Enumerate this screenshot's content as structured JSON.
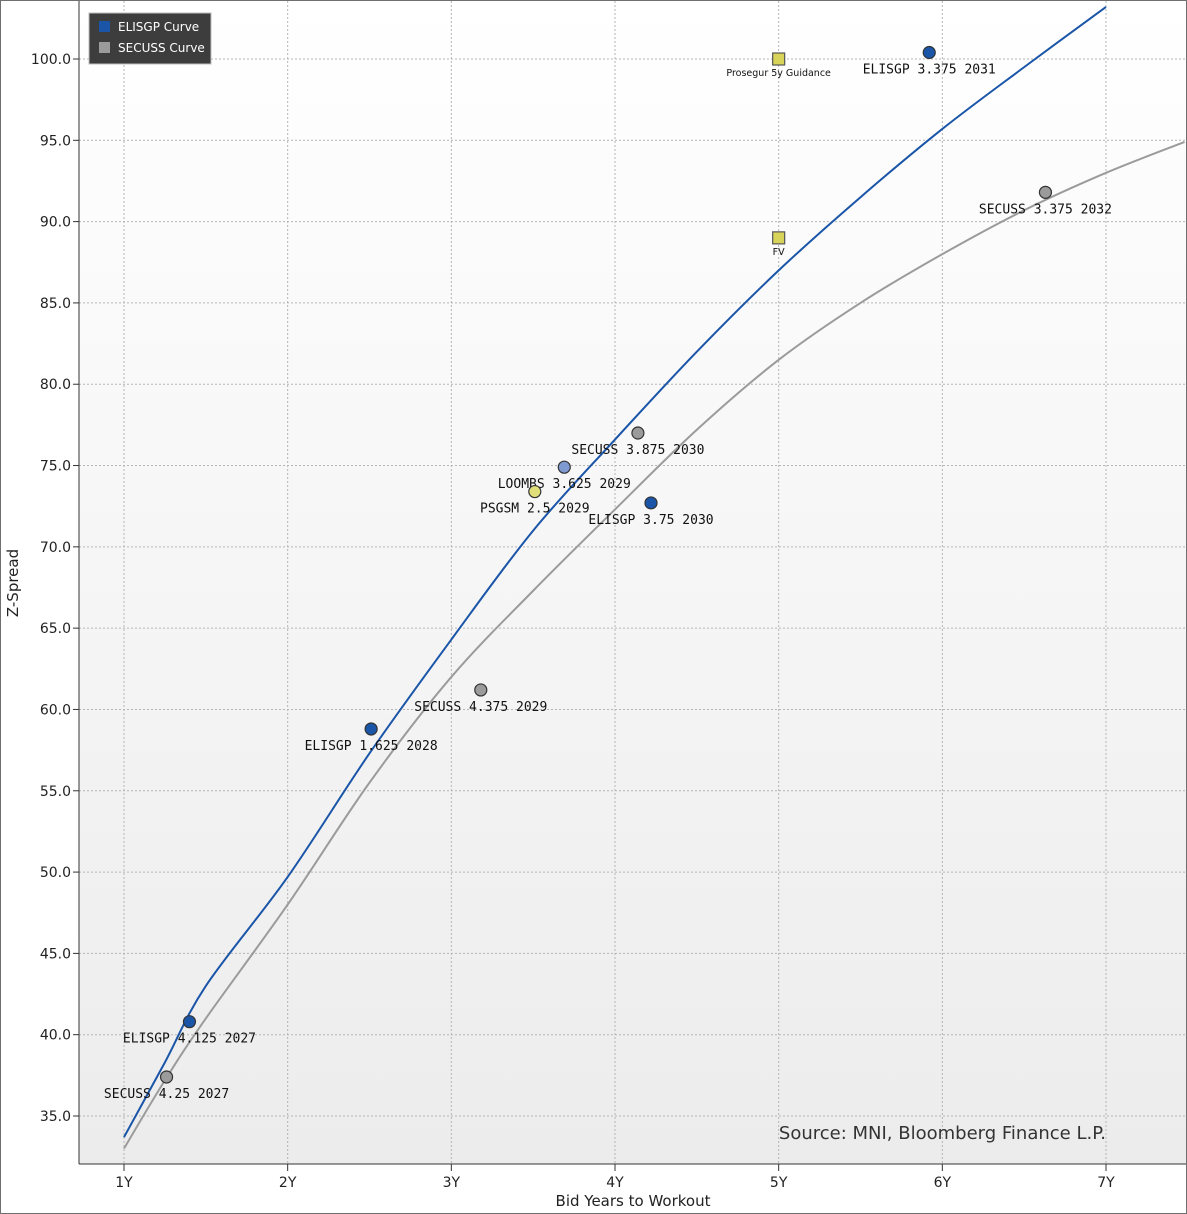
{
  "chart_data": {
    "type": "scatter",
    "xlabel": "Bid Years to Workout",
    "ylabel": "Z-Spread",
    "xlim": [
      0.72,
      7.48
    ],
    "ylim": [
      32.9,
      103.6
    ],
    "x_ticks": [
      {
        "value": 1,
        "label": "1Y"
      },
      {
        "value": 2,
        "label": "2Y"
      },
      {
        "value": 3,
        "label": "3Y"
      },
      {
        "value": 4,
        "label": "4Y"
      },
      {
        "value": 5,
        "label": "5Y"
      },
      {
        "value": 6,
        "label": "6Y"
      },
      {
        "value": 7,
        "label": "7Y"
      }
    ],
    "y_ticks": [
      {
        "value": 35,
        "label": "35.0"
      },
      {
        "value": 40,
        "label": "40.0"
      },
      {
        "value": 45,
        "label": "45.0"
      },
      {
        "value": 50,
        "label": "50.0"
      },
      {
        "value": 55,
        "label": "55.0"
      },
      {
        "value": 60,
        "label": "60.0"
      },
      {
        "value": 65,
        "label": "65.0"
      },
      {
        "value": 70,
        "label": "70.0"
      },
      {
        "value": 75,
        "label": "75.0"
      },
      {
        "value": 80,
        "label": "80.0"
      },
      {
        "value": 85,
        "label": "85.0"
      },
      {
        "value": 90,
        "label": "90.0"
      },
      {
        "value": 95,
        "label": "95.0"
      },
      {
        "value": 100,
        "label": "100.0"
      }
    ],
    "grid": true,
    "legend": {
      "placement": "top-left",
      "entries": [
        {
          "name": "ELISGP Curve",
          "color": "#1a55a8"
        },
        {
          "name": "SECUSS Curve",
          "color": "#9b9b9b"
        }
      ]
    },
    "curves": [
      {
        "name": "ELISGP Curve",
        "color": "#1a55a8",
        "x": [
          1.0,
          1.25,
          1.5,
          2.0,
          2.5,
          3.0,
          3.5,
          4.0,
          4.5,
          5.0,
          5.5,
          6.0,
          6.5,
          7.0
        ],
        "y": [
          33.7,
          38.3,
          43.0,
          49.7,
          57.3,
          64.3,
          71.0,
          76.6,
          82.0,
          87.0,
          91.5,
          95.7,
          99.5,
          103.2
        ]
      },
      {
        "name": "SECUSS Curve",
        "color": "#9b9b9b",
        "x": [
          1.0,
          1.25,
          1.5,
          2.0,
          2.5,
          3.0,
          3.5,
          4.0,
          4.5,
          5.0,
          5.5,
          6.0,
          6.5,
          7.0,
          7.48
        ],
        "y": [
          33.0,
          37.2,
          41.0,
          48.0,
          55.5,
          62.0,
          67.3,
          72.3,
          77.2,
          81.5,
          85.0,
          88.0,
          90.7,
          93.0,
          94.9
        ]
      }
    ],
    "points": [
      {
        "label": "ELISGP 3.375 2031",
        "x": 5.92,
        "y": 100.4,
        "shape": "circle",
        "color": "#1a55a8",
        "label_pos": "below",
        "small": false
      },
      {
        "label": "SECUSS 3.375 2032",
        "x": 6.63,
        "y": 91.8,
        "shape": "circle",
        "color": "#9b9b9b",
        "label_pos": "below",
        "small": false
      },
      {
        "label": "Prosegur 5y Guidance",
        "x": 5.0,
        "y": 100.0,
        "shape": "square",
        "color": "#d8d45a",
        "label_pos": "below",
        "small": true
      },
      {
        "label": "FV",
        "x": 5.0,
        "y": 89.0,
        "shape": "square",
        "color": "#d8d45a",
        "label_pos": "below",
        "small": true
      },
      {
        "label": "SECUSS 3.875 2030",
        "x": 4.14,
        "y": 77.0,
        "shape": "circle",
        "color": "#9b9b9b",
        "label_pos": "below",
        "small": false
      },
      {
        "label": "LOOMBS 3.625 2029",
        "x": 3.69,
        "y": 74.9,
        "shape": "circle",
        "color": "#7f9ad0",
        "label_pos": "below",
        "small": false
      },
      {
        "label": "PSGSM 2.5 2029",
        "x": 3.51,
        "y": 73.4,
        "shape": "circle",
        "color": "#e0df7a",
        "label_pos": "below",
        "small": false
      },
      {
        "label": "ELISGP 3.75 2030",
        "x": 4.22,
        "y": 72.7,
        "shape": "circle",
        "color": "#1a55a8",
        "label_pos": "below",
        "small": false
      },
      {
        "label": "SECUSS 4.375 2029",
        "x": 3.18,
        "y": 61.2,
        "shape": "circle",
        "color": "#9b9b9b",
        "label_pos": "below",
        "small": false
      },
      {
        "label": "ELISGP 1.625 2028",
        "x": 2.51,
        "y": 58.8,
        "shape": "circle",
        "color": "#1a55a8",
        "label_pos": "below",
        "small": false
      },
      {
        "label": "ELISGP 4.125 2027",
        "x": 1.4,
        "y": 40.8,
        "shape": "circle",
        "color": "#1a55a8",
        "label_pos": "below",
        "small": false
      },
      {
        "label": "SECUSS 4.25 2027",
        "x": 1.26,
        "y": 37.4,
        "shape": "circle",
        "color": "#9b9b9b",
        "label_pos": "below",
        "small": false
      }
    ],
    "annotations": [
      {
        "text": "Source: MNI, Bloomberg Finance L.P.",
        "placement": "bottom-right"
      }
    ]
  }
}
